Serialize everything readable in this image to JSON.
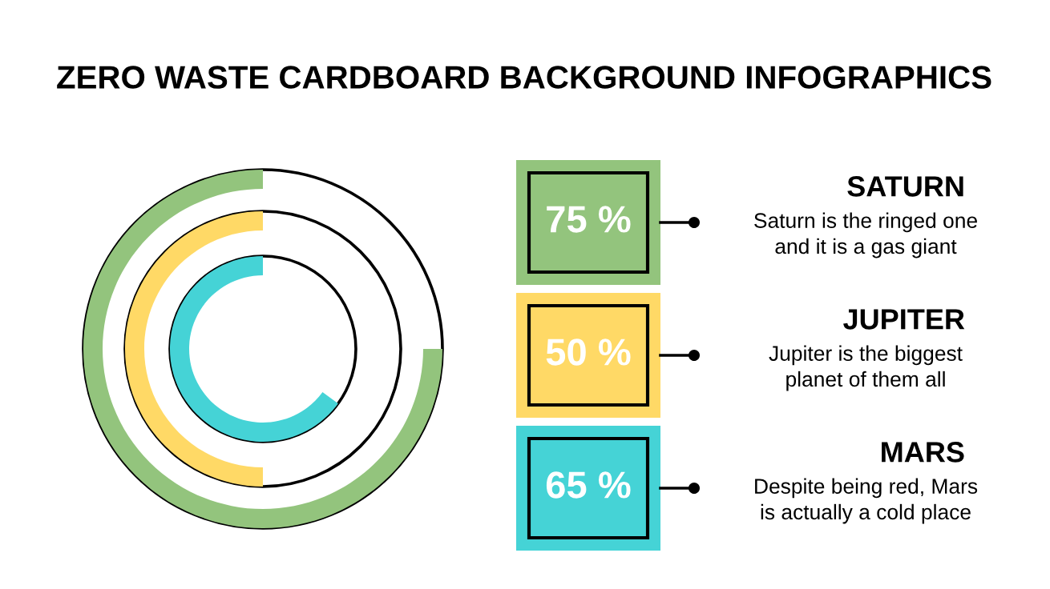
{
  "chart_data": {
    "type": "other",
    "title": "ZERO WASTE CARDBOARD BACKGROUND INFOGRAPHICS",
    "categories": [
      "SATURN",
      "JUPITER",
      "MARS"
    ],
    "values": [
      75,
      50,
      65
    ],
    "colors": [
      "#93c47d",
      "#ffd966",
      "#45d3d6"
    ],
    "value_labels": [
      "75 %",
      "50 %",
      "65 %"
    ],
    "annotations": [
      "Saturn is the ringed one\nand it is a gas giant",
      "Jupiter is the biggest\nplanet of them all",
      "Despite being red, Mars\nis actually a cold place"
    ]
  }
}
